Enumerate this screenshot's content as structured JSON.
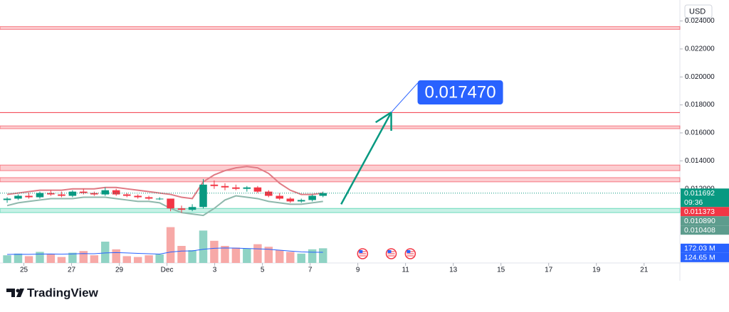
{
  "chart_data": {
    "type": "candlestick",
    "currency": "USD",
    "brand": "TradingView",
    "xlim": [
      24,
      52.5
    ],
    "xticks": [
      25,
      27,
      29,
      {
        "value": 31,
        "label": "Dec"
      },
      {
        "value": 33,
        "label": "3"
      },
      {
        "value": 35,
        "label": "5"
      },
      {
        "value": 37,
        "label": "7"
      },
      {
        "value": 39,
        "label": "9"
      },
      {
        "value": 41,
        "label": "11"
      },
      {
        "value": 43,
        "label": "13"
      },
      {
        "value": 45,
        "label": "15"
      },
      {
        "value": 47,
        "label": "17"
      },
      {
        "value": 49,
        "label": "19"
      },
      {
        "value": 51,
        "label": "21"
      }
    ],
    "ylim": [
      0.0067,
      0.0255
    ],
    "yticks": [
      {
        "value": 0.012,
        "label": "0.012000"
      },
      {
        "value": 0.014,
        "label": "0.014000"
      },
      {
        "value": 0.016,
        "label": "0.016000"
      },
      {
        "value": 0.018,
        "label": "0.018000"
      },
      {
        "value": 0.02,
        "label": "0.020000"
      },
      {
        "value": 0.022,
        "label": "0.022000"
      },
      {
        "value": 0.024,
        "label": "0.024000"
      }
    ],
    "up_color": "#089981",
    "down_color": "#f23645",
    "candles": [
      {
        "x": 24.3,
        "open": 0.0112,
        "high": 0.0114,
        "low": 0.011,
        "close": 0.0113
      },
      {
        "x": 24.76,
        "open": 0.0113,
        "high": 0.0116,
        "low": 0.0112,
        "close": 0.0115
      },
      {
        "x": 25.21,
        "open": 0.0115,
        "high": 0.0117,
        "low": 0.0113,
        "close": 0.0114
      },
      {
        "x": 25.67,
        "open": 0.0114,
        "high": 0.0118,
        "low": 0.0113,
        "close": 0.0117
      },
      {
        "x": 26.13,
        "open": 0.0117,
        "high": 0.0119,
        "low": 0.0115,
        "close": 0.0116
      },
      {
        "x": 26.58,
        "open": 0.0116,
        "high": 0.0118,
        "low": 0.0114,
        "close": 0.0115
      },
      {
        "x": 27.04,
        "open": 0.0115,
        "high": 0.0119,
        "low": 0.0114,
        "close": 0.0118
      },
      {
        "x": 27.5,
        "open": 0.0118,
        "high": 0.012,
        "low": 0.0116,
        "close": 0.0117
      },
      {
        "x": 27.95,
        "open": 0.0117,
        "high": 0.0118,
        "low": 0.0115,
        "close": 0.0116
      },
      {
        "x": 28.41,
        "open": 0.0116,
        "high": 0.0121,
        "low": 0.0115,
        "close": 0.0119
      },
      {
        "x": 28.87,
        "open": 0.0119,
        "high": 0.012,
        "low": 0.0115,
        "close": 0.0116
      },
      {
        "x": 29.32,
        "open": 0.0116,
        "high": 0.0117,
        "low": 0.0114,
        "close": 0.0115
      },
      {
        "x": 29.78,
        "open": 0.0115,
        "high": 0.0116,
        "low": 0.0113,
        "close": 0.0114
      },
      {
        "x": 30.24,
        "open": 0.0114,
        "high": 0.0115,
        "low": 0.0112,
        "close": 0.0113
      },
      {
        "x": 30.69,
        "open": 0.0113,
        "high": 0.0114,
        "low": 0.0112,
        "close": 0.0113
      },
      {
        "x": 31.15,
        "open": 0.0113,
        "high": 0.0113,
        "low": 0.0104,
        "close": 0.0106
      },
      {
        "x": 31.61,
        "open": 0.0106,
        "high": 0.0108,
        "low": 0.0103,
        "close": 0.0105
      },
      {
        "x": 32.06,
        "open": 0.0105,
        "high": 0.0109,
        "low": 0.0104,
        "close": 0.0107
      },
      {
        "x": 32.52,
        "open": 0.0107,
        "high": 0.0127,
        "low": 0.0106,
        "close": 0.0123
      },
      {
        "x": 32.98,
        "open": 0.0123,
        "high": 0.0126,
        "low": 0.012,
        "close": 0.0122
      },
      {
        "x": 33.43,
        "open": 0.0122,
        "high": 0.0124,
        "low": 0.0119,
        "close": 0.0121
      },
      {
        "x": 33.89,
        "open": 0.0121,
        "high": 0.0123,
        "low": 0.0119,
        "close": 0.012
      },
      {
        "x": 34.35,
        "open": 0.012,
        "high": 0.0122,
        "low": 0.0118,
        "close": 0.0121
      },
      {
        "x": 34.8,
        "open": 0.0121,
        "high": 0.0122,
        "low": 0.0117,
        "close": 0.0118
      },
      {
        "x": 35.26,
        "open": 0.0118,
        "high": 0.0119,
        "low": 0.0114,
        "close": 0.0115
      },
      {
        "x": 35.72,
        "open": 0.0115,
        "high": 0.0117,
        "low": 0.0112,
        "close": 0.0113
      },
      {
        "x": 36.17,
        "open": 0.0113,
        "high": 0.0114,
        "low": 0.011,
        "close": 0.0111
      },
      {
        "x": 36.63,
        "open": 0.0111,
        "high": 0.0113,
        "low": 0.011,
        "close": 0.0112
      },
      {
        "x": 37.09,
        "open": 0.0112,
        "high": 0.0116,
        "low": 0.0111,
        "close": 0.0115
      },
      {
        "x": 37.54,
        "open": 0.0115,
        "high": 0.0118,
        "low": 0.0114,
        "close": 0.011692
      }
    ],
    "bands": [
      {
        "color": "#e07a84",
        "values": [
          0.0116,
          0.0117,
          0.0118,
          0.0119,
          0.0119,
          0.0119,
          0.012,
          0.012,
          0.012,
          0.0121,
          0.0121,
          0.012,
          0.0119,
          0.0118,
          0.0117,
          0.0116,
          0.0114,
          0.0113,
          0.0125,
          0.013,
          0.0133,
          0.0135,
          0.0136,
          0.0135,
          0.0131,
          0.0124,
          0.0119,
          0.0116,
          0.0116,
          0.0117
        ]
      },
      {
        "color": "#8fb8ac",
        "values": [
          0.0108,
          0.011,
          0.0111,
          0.0112,
          0.0113,
          0.0113,
          0.0113,
          0.0114,
          0.0114,
          0.0114,
          0.0113,
          0.0112,
          0.0111,
          0.0111,
          0.011,
          0.0106,
          0.0103,
          0.0102,
          0.0101,
          0.0106,
          0.0112,
          0.0115,
          0.0114,
          0.0113,
          0.0111,
          0.011,
          0.0109,
          0.0109,
          0.011,
          0.0111
        ]
      }
    ],
    "volume": {
      "ylim": [
        0,
        500
      ],
      "values": [
        90,
        110,
        80,
        130,
        100,
        70,
        120,
        140,
        90,
        250,
        160,
        80,
        70,
        90,
        100,
        420,
        200,
        150,
        380,
        260,
        200,
        180,
        170,
        220,
        190,
        150,
        130,
        110,
        160,
        172.03
      ],
      "up_color": "#8fd3c4",
      "down_color": "#f7a9a7",
      "ma": {
        "color": "#2962ff",
        "values": [
          100,
          102,
          101,
          104,
          105,
          103,
          106,
          110,
          108,
          118,
          122,
          118,
          112,
          108,
          104,
          128,
          140,
          142,
          160,
          172,
          176,
          174,
          170,
          166,
          160,
          150,
          140,
          130,
          126,
          124.65
        ]
      },
      "labels": [
        {
          "value": 172.03,
          "label": "172.03 M"
        },
        {
          "value": 124.65,
          "label": "124.65 M"
        }
      ]
    },
    "zones": [
      {
        "low": 0.0234,
        "high": 0.0236,
        "color": "#f23645"
      },
      {
        "low": 0.0163,
        "high": 0.0165,
        "color": "#f23645"
      },
      {
        "low": 0.0133,
        "high": 0.0137,
        "color": "#f23645"
      },
      {
        "low": 0.0125,
        "high": 0.0128,
        "color": "#f23645"
      },
      {
        "low": 0.0103,
        "high": 0.0106,
        "color": "#22c99a"
      }
    ],
    "levels": [
      {
        "value": 0.01745,
        "color": "#f23645"
      }
    ],
    "price_labels": [
      {
        "value": 0.011692,
        "label": "0.011692",
        "color": "#089981",
        "countdown": "09:36"
      },
      {
        "value": 0.011373,
        "label": "0.011373",
        "color": "#f23645"
      },
      {
        "value": 0.01089,
        "label": "0.010890",
        "color": "#5d9c8d"
      },
      {
        "value": 0.010408,
        "label": "0.010408",
        "color": "#5d9c8d"
      }
    ],
    "target": {
      "label": "0.017470",
      "value": 0.01747,
      "x": 40.4,
      "from_x": 38.3,
      "from_value": 0.0109,
      "color": "#2962ff",
      "arrow_color": "#089981"
    },
    "events_x": [
      39.2,
      40.4,
      41.2
    ]
  }
}
